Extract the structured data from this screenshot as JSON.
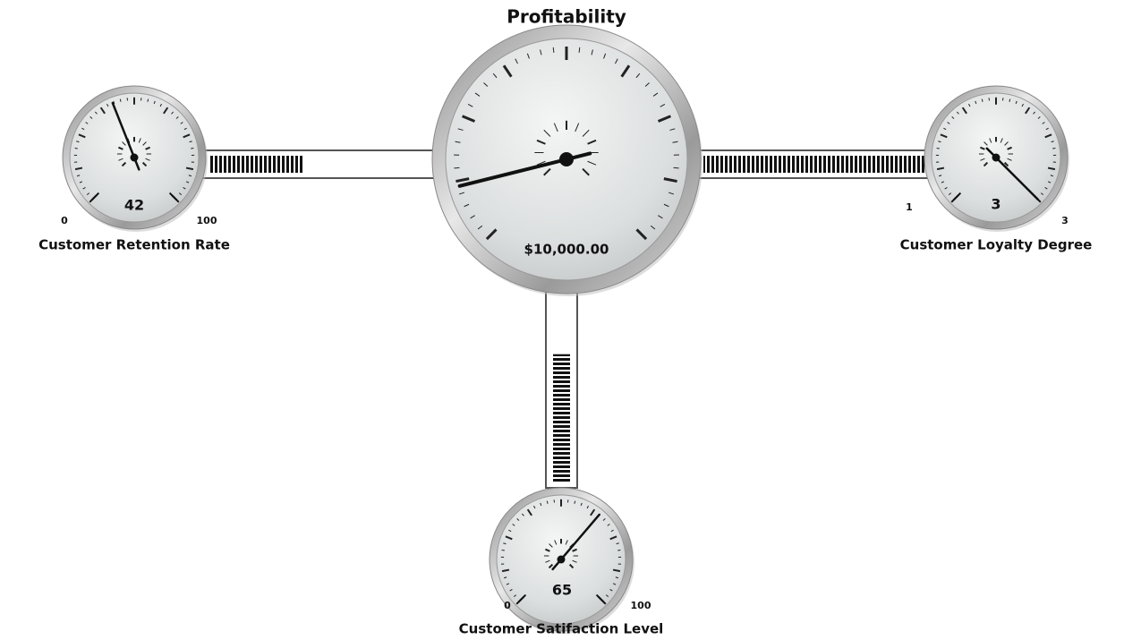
{
  "chart_data": [
    {
      "type": "gauge",
      "title": "Profitability",
      "values": [
        10000
      ],
      "value_labels": [
        "$10,000.00"
      ]
    },
    {
      "type": "gauge",
      "title": "Customer Retention Rate",
      "values": [
        42
      ],
      "ylim": [
        0,
        100
      ],
      "yticks": [
        0,
        100
      ]
    },
    {
      "type": "gauge",
      "title": "Customer Loyalty Degree",
      "values": [
        3
      ],
      "ylim": [
        1,
        3
      ],
      "yticks": [
        1,
        3
      ]
    },
    {
      "type": "gauge",
      "title": "Customer Satifaction Level",
      "values": [
        65
      ],
      "ylim": [
        0,
        100
      ],
      "yticks": [
        0,
        100
      ]
    }
  ]
}
